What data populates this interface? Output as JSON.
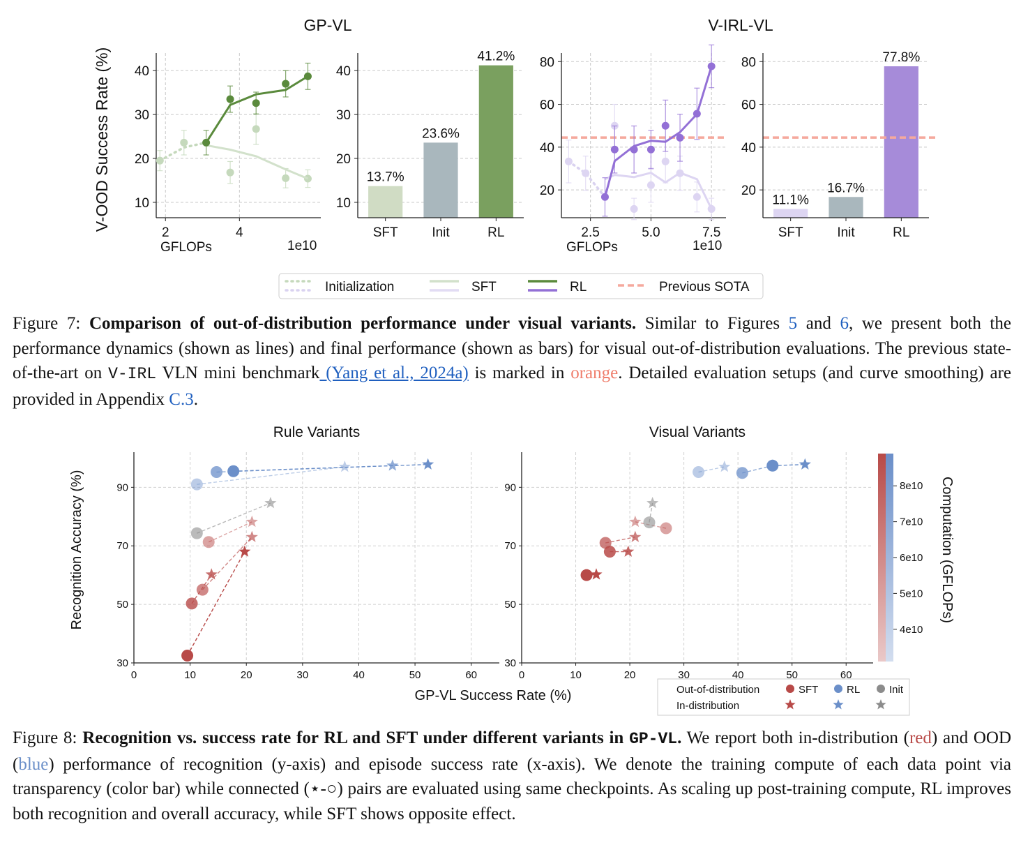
{
  "figure7": {
    "label": "Figure 7:",
    "title": "Comparison of out-of-distribution performance under visual variants.",
    "text_a": " Similar to Figures ",
    "ref1": "5",
    "text_b": " and ",
    "ref2": "6",
    "text_c": ", we present both the performance dynamics (shown as lines) and final performance (shown as bars) for visual out-of-distribution evaluations. The previous state-of-the-art on ",
    "mono": "V-IRL",
    "text_d": " VLN mini benchmark",
    "cite": " (Yang et al., 2024a)",
    "text_e": " is marked in ",
    "orange_word": "orange",
    "text_f": ". Detailed evaluation setups (and curve smoothing) are provided in Appendix ",
    "ref3": "C.3",
    "text_g": "."
  },
  "figure8": {
    "label": "Figure 8:",
    "title_a": "Recognition vs.  success rate for RL and SFT under different variants in ",
    "title_mono": "GP-VL",
    "title_b": ".",
    "text_a": " We report both in-distribution (",
    "red_word": "red",
    "text_b": ") and OOD (",
    "blue_word": "blue",
    "text_c": ") performance of recognition (y-axis) and episode success rate (x-axis). We denote the training compute of each data point via transparency (color bar) while connected (⋆-○) pairs are evaluated using same checkpoints. As scaling up post-training compute, RL improves both recognition and overall accuracy, while SFT shows opposite effect."
  },
  "chart_data": [
    {
      "id": "gpvl-line",
      "type": "line",
      "title": "GP-VL",
      "xlabel": "GFLOPs",
      "ylabel": "V-OOD Success Rate (%)",
      "x_multiplier": "1e10",
      "xlim": [
        1.75,
        6.2
      ],
      "ylim": [
        6.5,
        44
      ],
      "xticks": [
        2,
        4
      ],
      "yticks": [
        10,
        20,
        30,
        40
      ],
      "series": [
        {
          "name": "Initialization",
          "style": "dotted",
          "color": "#c5d9bc",
          "x": [
            1.85,
            2.5,
            3.1
          ],
          "y": [
            19.5,
            22.5,
            23.6
          ]
        },
        {
          "name": "SFT points",
          "style": "points",
          "color": "#c5d9bc",
          "x": [
            1.85,
            2.5,
            3.75,
            4.45,
            5.25,
            5.85
          ],
          "y": [
            19.5,
            23.6,
            16.8,
            26.7,
            15.5,
            15.4
          ],
          "err": [
            2.3,
            2.8,
            2.5,
            3.5,
            2.2,
            2.0
          ]
        },
        {
          "name": "SFT",
          "style": "line",
          "color": "#d2e1cb",
          "x": [
            3.1,
            3.75,
            4.45,
            5.25,
            5.85
          ],
          "y": [
            23.0,
            22.0,
            20.5,
            17.5,
            15.4
          ]
        },
        {
          "name": "RL",
          "style": "line",
          "color": "#5a8a3c",
          "x": [
            3.1,
            3.75,
            4.45,
            5.25,
            5.85
          ],
          "y": [
            23.6,
            32.2,
            34.6,
            35.6,
            38.7
          ]
        },
        {
          "name": "RL points",
          "style": "points",
          "color": "#5a8a3c",
          "x": [
            3.1,
            3.75,
            4.45,
            5.25,
            5.85
          ],
          "y": [
            23.6,
            33.5,
            32.6,
            37.0,
            38.7
          ],
          "err": [
            2.8,
            3.0,
            2.5,
            3.0,
            3.0
          ]
        }
      ]
    },
    {
      "id": "gpvl-bar",
      "type": "bar",
      "categories": [
        "SFT",
        "Init",
        "RL"
      ],
      "values": [
        13.7,
        23.6,
        41.2
      ],
      "labels": [
        "13.7%",
        "23.6%",
        "41.2%"
      ],
      "colors": [
        "#d0dcc4",
        "#a9b7bd",
        "#7aa05f"
      ],
      "ylim": [
        6.5,
        44
      ],
      "yticks": [
        10,
        20,
        30,
        40
      ]
    },
    {
      "id": "virl-line",
      "type": "line",
      "title": "V-IRL-VL",
      "xlabel": "GFLOPs",
      "x_multiplier": "1e10",
      "xlim": [
        1.3,
        8.1
      ],
      "ylim": [
        7,
        84
      ],
      "xticks": [
        2.5,
        5.0,
        7.5
      ],
      "xtick_labels": [
        "2.5",
        "5.0",
        "7.5"
      ],
      "yticks": [
        20,
        40,
        60,
        80
      ],
      "sota": 44.5,
      "series": [
        {
          "name": "Initialization",
          "style": "dotted",
          "color": "#d9d2f0",
          "x": [
            1.6,
            2.3,
            3.1
          ],
          "y": [
            33.3,
            27.8,
            16.7
          ]
        },
        {
          "name": "SFT points",
          "style": "points",
          "color": "#ddd5f2",
          "x": [
            1.6,
            2.3,
            3.5,
            4.3,
            5.0,
            5.6,
            6.2,
            6.9,
            7.5
          ],
          "y": [
            33.3,
            27.8,
            50.0,
            11.1,
            22.2,
            33.3,
            27.8,
            16.7,
            11.1
          ],
          "err": [
            10,
            8,
            10,
            5,
            8,
            10,
            8,
            7,
            5
          ]
        },
        {
          "name": "SFT",
          "style": "line",
          "color": "#ddd5f2",
          "x": [
            3.1,
            3.5,
            4.3,
            5.0,
            5.6,
            6.2,
            6.9,
            7.5
          ],
          "y": [
            25.0,
            27.0,
            26.0,
            28.0,
            23.5,
            28.0,
            25.0,
            11.1
          ]
        },
        {
          "name": "RL",
          "style": "line",
          "color": "#9370d6",
          "x": [
            3.1,
            3.5,
            4.3,
            5.0,
            5.6,
            6.2,
            6.9,
            7.5
          ],
          "y": [
            16.7,
            33.5,
            40.5,
            43.0,
            42.5,
            47.0,
            55.5,
            77.8
          ]
        },
        {
          "name": "RL points",
          "style": "points",
          "color": "#9370d6",
          "x": [
            3.1,
            3.5,
            4.3,
            5.0,
            5.6,
            6.2,
            6.9,
            7.5
          ],
          "y": [
            16.7,
            38.9,
            38.9,
            38.9,
            50.0,
            44.4,
            55.6,
            77.8
          ],
          "err": [
            9,
            11,
            11,
            9,
            12,
            11,
            12,
            10
          ]
        }
      ]
    },
    {
      "id": "virl-bar",
      "type": "bar",
      "categories": [
        "SFT",
        "Init",
        "RL"
      ],
      "values": [
        11.1,
        16.7,
        77.8
      ],
      "labels": [
        "11.1%",
        "16.7%",
        "77.8%"
      ],
      "colors": [
        "#ddd5f2",
        "#a9b7bd",
        "#a68bd9"
      ],
      "ylim": [
        7,
        84
      ],
      "yticks": [
        20,
        40,
        60,
        80
      ],
      "sota": 44.5
    },
    {
      "id": "rule-variants",
      "type": "scatter",
      "title": "Rule Variants",
      "xlim": [
        0,
        65
      ],
      "ylim": [
        30,
        102
      ],
      "xticks": [
        0,
        10,
        20,
        30,
        40,
        50,
        60
      ],
      "yticks": [
        30,
        50,
        70,
        90
      ],
      "ylabel": "Recognition Accuracy (%)",
      "pairs": [
        {
          "group": "RL",
          "alpha": 0.45,
          "ood": [
            11.2,
            91.0
          ],
          "id": [
            37.5,
            97.0
          ]
        },
        {
          "group": "RL",
          "alpha": 0.75,
          "ood": [
            14.7,
            95.2
          ],
          "id": [
            46.0,
            97.4
          ]
        },
        {
          "group": "RL",
          "alpha": 1.0,
          "ood": [
            17.7,
            95.5
          ],
          "id": [
            52.3,
            97.8
          ]
        },
        {
          "group": "Init",
          "alpha": 0.6,
          "ood": [
            11.2,
            74.3
          ],
          "id": [
            24.3,
            84.6
          ]
        },
        {
          "group": "SFT",
          "alpha": 0.5,
          "ood": [
            13.3,
            71.3
          ],
          "id": [
            21.0,
            78.2
          ]
        },
        {
          "group": "SFT",
          "alpha": 0.65,
          "ood": [
            12.2,
            55.0
          ],
          "id": [
            21.0,
            73.0
          ]
        },
        {
          "group": "SFT",
          "alpha": 0.8,
          "ood": [
            10.3,
            50.3
          ],
          "id": [
            13.8,
            60.2
          ]
        },
        {
          "group": "SFT",
          "alpha": 1.0,
          "ood": [
            9.5,
            32.5
          ],
          "id": [
            19.7,
            68.0
          ]
        }
      ]
    },
    {
      "id": "visual-variants",
      "type": "scatter",
      "title": "Visual Variants",
      "xlabel": "GP-VL Success Rate (%)",
      "xlim": [
        0,
        65
      ],
      "ylim": [
        30,
        102
      ],
      "xticks": [
        0,
        10,
        20,
        30,
        40,
        50,
        60
      ],
      "yticks": [
        30,
        50,
        70,
        90
      ],
      "pairs": [
        {
          "group": "RL",
          "alpha": 0.45,
          "ood": [
            32.7,
            95.2
          ],
          "id": [
            37.5,
            97.0
          ]
        },
        {
          "group": "RL",
          "alpha": 0.75,
          "ood": [
            40.8,
            94.9
          ],
          "id": [
            46.4,
            97.4
          ]
        },
        {
          "group": "RL",
          "alpha": 1.0,
          "ood": [
            46.4,
            97.4
          ],
          "id": [
            52.4,
            97.8
          ]
        },
        {
          "group": "Init",
          "alpha": 0.6,
          "ood": [
            23.6,
            78.0
          ],
          "id": [
            24.2,
            84.6
          ]
        },
        {
          "group": "SFT",
          "alpha": 0.5,
          "ood": [
            26.7,
            76.0
          ],
          "id": [
            21.0,
            78.2
          ]
        },
        {
          "group": "SFT",
          "alpha": 0.7,
          "ood": [
            15.5,
            71.0
          ],
          "id": [
            21.0,
            73.0
          ]
        },
        {
          "group": "SFT",
          "alpha": 0.85,
          "ood": [
            16.3,
            68.0
          ],
          "id": [
            19.7,
            68.0
          ]
        },
        {
          "group": "SFT",
          "alpha": 1.0,
          "ood": [
            12.0,
            60.0
          ],
          "id": [
            13.8,
            60.2
          ]
        }
      ],
      "colorbar": {
        "label": "Computation (GFLOPs)",
        "ticks": [
          "8e10",
          "7e10",
          "6e10",
          "5e10",
          "4e10"
        ],
        "tick_values": [
          8,
          7,
          6,
          5,
          4
        ],
        "range": [
          3.1,
          8.9
        ]
      }
    }
  ],
  "legend7": {
    "items": [
      "Initialization",
      "SFT",
      "RL",
      "Previous SOTA"
    ]
  },
  "legend8": {
    "row1": "Out-of-distribution",
    "row2": "In-distribution",
    "sft": "SFT",
    "rl": "RL",
    "init": "Init"
  },
  "colors": {
    "sft_red": "#b84a48",
    "rl_blue": "#6b8fc9",
    "init_gray": "#8c8c8c",
    "green": "#5a8a3c",
    "purple": "#9370d6",
    "sota": "#f5a99d"
  }
}
